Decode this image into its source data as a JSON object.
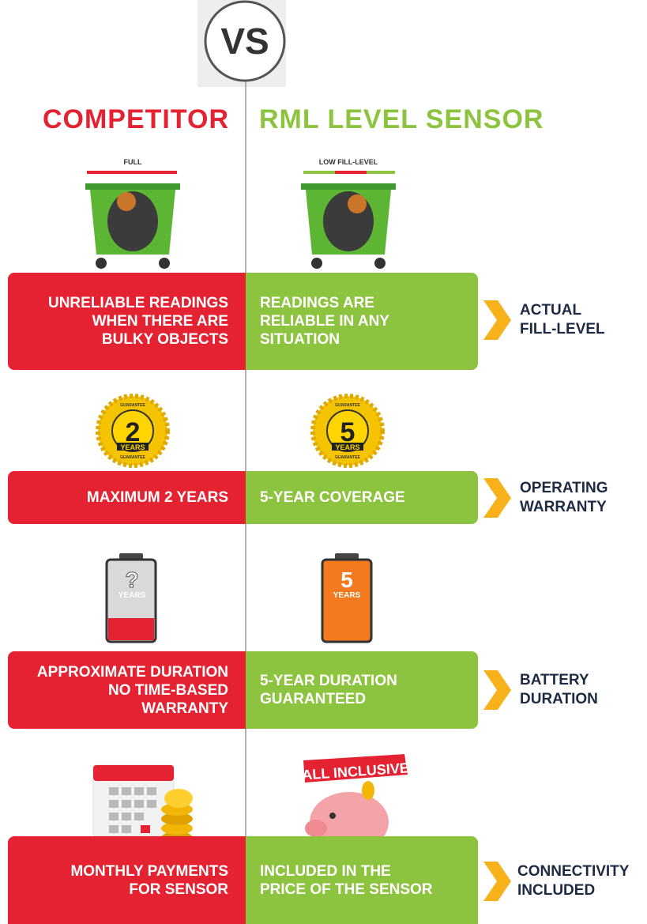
{
  "vs": "VS",
  "headers": {
    "competitor": "COMPETITOR",
    "rml": "RML LEVEL SENSOR"
  },
  "illustrations": {
    "bin_full_label": "FULL",
    "bin_low_label": "LOW FILL-LEVEL",
    "badge_ring_text": "GUARANTEE",
    "badge_competitor": {
      "number": "2",
      "unit": "YEARS"
    },
    "badge_rml": {
      "number": "5",
      "unit": "YEARS"
    },
    "battery_competitor": {
      "number": "?",
      "unit": "YEARS"
    },
    "battery_rml": {
      "number": "5",
      "unit": "YEARS"
    },
    "piggy_banner": "ALL INCLUSIVE"
  },
  "rows": [
    {
      "competitor": "UNRELIABLE READINGS\nWHEN THERE ARE\nBULKY OBJECTS",
      "rml": "READINGS ARE\nRELIABLE IN ANY\nSITUATION",
      "feature": "ACTUAL\nFILL-LEVEL"
    },
    {
      "competitor": "MAXIMUM 2 YEARS",
      "rml": "5-YEAR COVERAGE",
      "feature": "OPERATING\nWARRANTY"
    },
    {
      "competitor": "APPROXIMATE DURATION\nNO TIME-BASED\nWARRANTY",
      "rml": "5-YEAR DURATION\nGUARANTEED",
      "feature": "BATTERY\nDURATION"
    },
    {
      "competitor": "MONTHLY PAYMENTS\nFOR SENSOR",
      "rml": "INCLUDED IN THE\nPRICE OF THE SENSOR",
      "feature": "CONNECTIVITY\nINCLUDED"
    }
  ]
}
